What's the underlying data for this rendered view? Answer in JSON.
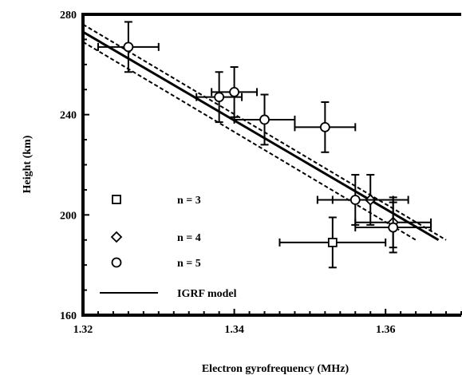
{
  "chart_data": {
    "type": "scatter",
    "title": "",
    "xlabel": "Electron gyrofrequency (MHz)",
    "ylabel": "Height (km)",
    "xlim": [
      1.32,
      1.37
    ],
    "ylim": [
      160,
      280
    ],
    "x_ticks": [
      1.32,
      1.34,
      1.36
    ],
    "x_tick_labels": [
      "1.32",
      "1.34",
      "1.36"
    ],
    "y_ticks": [
      160,
      200,
      240,
      280
    ],
    "y_tick_labels": [
      "160",
      "200",
      "240",
      "280"
    ],
    "grid": false,
    "legend_position": "bottom-left",
    "series": [
      {
        "name": "n = 3",
        "marker": "square",
        "points": [
          {
            "x": 1.353,
            "y": 189,
            "xerr": 0.007,
            "yerr": 10
          }
        ]
      },
      {
        "name": "n = 4",
        "marker": "diamond",
        "points": [
          {
            "x": 1.358,
            "y": 206,
            "xerr": 0.005,
            "yerr": 10
          },
          {
            "x": 1.361,
            "y": 197,
            "xerr": 0.005,
            "yerr": 10
          }
        ]
      },
      {
        "name": "n = 5",
        "marker": "circle",
        "points": [
          {
            "x": 1.326,
            "y": 267,
            "xerr": 0.004,
            "yerr": 10
          },
          {
            "x": 1.338,
            "y": 247,
            "xerr": 0.003,
            "yerr": 10
          },
          {
            "x": 1.34,
            "y": 249,
            "xerr": 0.003,
            "yerr": 10
          },
          {
            "x": 1.344,
            "y": 238,
            "xerr": 0.004,
            "yerr": 10
          },
          {
            "x": 1.352,
            "y": 235,
            "xerr": 0.004,
            "yerr": 10
          },
          {
            "x": 1.356,
            "y": 206,
            "xerr": 0.005,
            "yerr": 10
          },
          {
            "x": 1.361,
            "y": 195,
            "xerr": 0.005,
            "yerr": 10
          }
        ]
      }
    ],
    "lines": [
      {
        "name": "IGRF model",
        "style": "solid",
        "weight": "thick",
        "x": [
          1.32,
          1.367
        ],
        "y": [
          273,
          190
        ]
      },
      {
        "style": "dashed",
        "x": [
          1.32,
          1.368
        ],
        "y": [
          276,
          190
        ]
      },
      {
        "style": "dashed",
        "x": [
          1.32,
          1.364
        ],
        "y": [
          269,
          190
        ]
      }
    ],
    "legend": [
      {
        "label": "n = 3",
        "marker": "square"
      },
      {
        "label": "n = 4",
        "marker": "diamond"
      },
      {
        "label": "n = 5",
        "marker": "circle"
      },
      {
        "label": "IGRF model",
        "marker": "line"
      }
    ]
  }
}
